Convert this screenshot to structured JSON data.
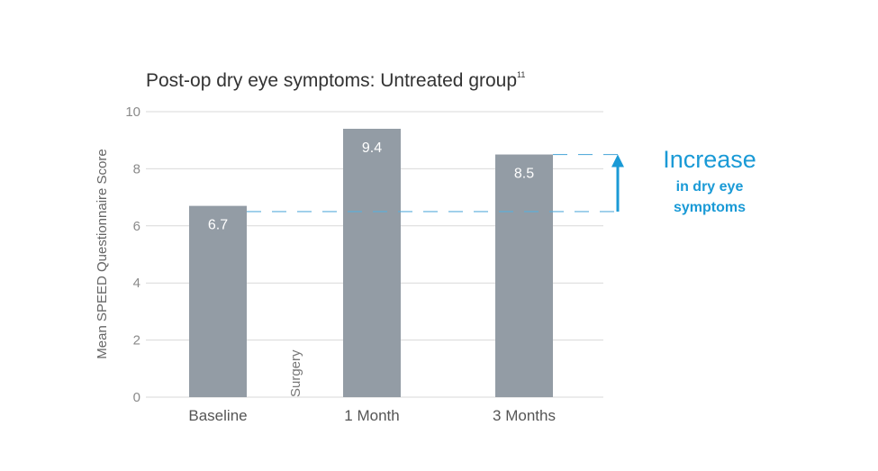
{
  "colors": {
    "bar": "#939ca5",
    "grid": "#d9d9d9",
    "accent": "#1a9ad6",
    "dash": "#5aaedc"
  },
  "chart_data": {
    "type": "bar",
    "title": "Post-op dry eye symptoms: Untreated group",
    "title_superscript": "11",
    "ylabel": "Mean SPEED Questionnaire Score",
    "xlabel": "",
    "ylim": [
      0,
      10
    ],
    "yticks": [
      0,
      2,
      4,
      6,
      8,
      10
    ],
    "categories": [
      "Baseline",
      "1 Month",
      "3 Months"
    ],
    "values": [
      6.7,
      9.4,
      8.5
    ],
    "data_labels": [
      "6.7",
      "9.4",
      "8.5"
    ],
    "grid": true,
    "annotations": {
      "event_marker": "Surgery",
      "increase_title": "Increase",
      "increase_line1": "in dry eye",
      "increase_line2": "symptoms",
      "increase_from": 6.5,
      "increase_to": 8.5
    }
  }
}
